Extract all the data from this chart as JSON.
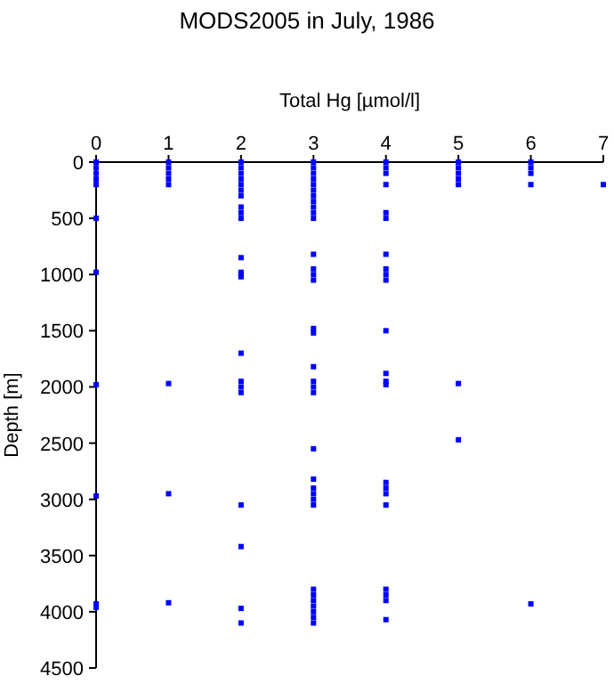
{
  "chart_data": {
    "type": "scatter",
    "title": "MODS2005 in July, 1986",
    "xlabel": "Total Hg [µmol/l]",
    "ylabel": "Depth [m]",
    "xlim": [
      0,
      7
    ],
    "xticks": [
      0,
      1,
      2,
      3,
      4,
      5,
      6,
      7
    ],
    "ylim": [
      4500,
      0
    ],
    "yticks": [
      0,
      500,
      1000,
      1500,
      2000,
      2500,
      3000,
      3500,
      4000,
      4500
    ],
    "grid": false,
    "marker": "square",
    "series": [
      {
        "color": "#0000ff",
        "x": [
          0,
          0,
          0,
          0,
          0,
          0,
          0,
          0,
          0,
          0,
          0,
          1,
          1,
          1,
          1,
          1,
          1,
          1,
          1,
          2,
          2,
          2,
          2,
          2,
          2,
          2,
          2,
          2,
          2,
          2,
          2,
          2,
          2,
          2,
          2,
          2,
          2,
          2,
          2,
          2,
          2,
          3,
          3,
          3,
          3,
          3,
          3,
          3,
          3,
          3,
          3,
          3,
          3,
          3,
          3,
          3,
          3,
          3,
          3,
          3,
          3,
          3,
          3,
          3,
          3,
          3,
          3,
          3,
          3,
          3,
          3,
          3,
          3,
          3,
          3,
          4,
          4,
          4,
          4,
          4,
          4,
          4,
          4,
          4,
          4,
          4,
          4,
          4,
          4,
          4,
          4,
          4,
          4,
          4,
          4,
          4,
          4,
          5,
          5,
          5,
          5,
          5,
          5,
          5,
          6,
          6,
          6,
          6,
          6,
          7
        ],
        "values": [
          0,
          50,
          100,
          150,
          200,
          500,
          980,
          1980,
          2970,
          3930,
          3960,
          0,
          50,
          100,
          150,
          200,
          1970,
          2950,
          3920,
          0,
          50,
          100,
          150,
          200,
          250,
          300,
          400,
          450,
          500,
          850,
          980,
          1000,
          1020,
          1700,
          1950,
          2000,
          2050,
          3050,
          3420,
          3970,
          4100,
          0,
          50,
          100,
          150,
          200,
          250,
          300,
          350,
          400,
          450,
          500,
          820,
          950,
          1000,
          1050,
          1480,
          1520,
          1820,
          1950,
          2000,
          2050,
          2550,
          2820,
          2900,
          2950,
          3000,
          3050,
          3800,
          3850,
          3900,
          3950,
          4000,
          4050,
          4100,
          0,
          50,
          100,
          200,
          450,
          500,
          820,
          950,
          1000,
          1050,
          1500,
          1880,
          1950,
          1980,
          2850,
          2900,
          2950,
          3050,
          3800,
          3850,
          3900,
          4070,
          0,
          50,
          100,
          150,
          200,
          1970,
          2470,
          0,
          50,
          100,
          200,
          3930,
          200
        ]
      }
    ]
  }
}
